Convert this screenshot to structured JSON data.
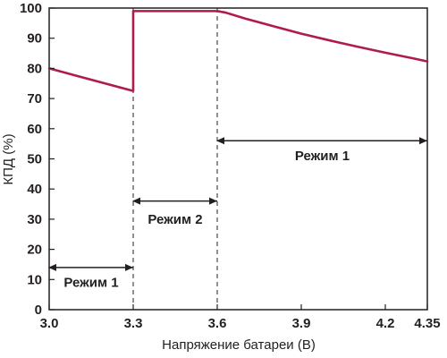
{
  "chart_data": {
    "type": "line",
    "xlabel": "Напряжение батареи (В)",
    "ylabel": "КПД (%)",
    "xlim": [
      3.0,
      4.35
    ],
    "ylim": [
      0,
      100
    ],
    "x_ticks": [
      {
        "value": 3.0,
        "label": "3.0"
      },
      {
        "value": 3.3,
        "label": "3.3"
      },
      {
        "value": 3.6,
        "label": "3.6"
      },
      {
        "value": 3.9,
        "label": "3.9"
      },
      {
        "value": 4.2,
        "label": "4.2"
      },
      {
        "value": 4.35,
        "label": "4.35"
      }
    ],
    "y_ticks": [
      {
        "value": 0,
        "label": "0"
      },
      {
        "value": 10,
        "label": "10"
      },
      {
        "value": 20,
        "label": "20"
      },
      {
        "value": 30,
        "label": "30"
      },
      {
        "value": 40,
        "label": "40"
      },
      {
        "value": 50,
        "label": "50"
      },
      {
        "value": 60,
        "label": "60"
      },
      {
        "value": 70,
        "label": "70"
      },
      {
        "value": 80,
        "label": "80"
      },
      {
        "value": 90,
        "label": "90"
      },
      {
        "value": 100,
        "label": "100"
      }
    ],
    "series": [
      {
        "color": "#b01c4a",
        "points": [
          [
            3.0,
            80
          ],
          [
            3.1,
            77.5
          ],
          [
            3.2,
            75
          ],
          [
            3.3,
            72.5
          ],
          [
            3.3,
            99
          ],
          [
            3.4,
            99
          ],
          [
            3.5,
            99
          ],
          [
            3.6,
            99
          ],
          [
            3.63,
            98.5
          ],
          [
            3.7,
            96.5
          ],
          [
            3.8,
            94
          ],
          [
            3.9,
            91.5
          ],
          [
            4.0,
            89.3
          ],
          [
            4.1,
            87.2
          ],
          [
            4.2,
            85.2
          ],
          [
            4.3,
            83.3
          ],
          [
            4.35,
            82.3
          ]
        ]
      }
    ],
    "vertical_markers": [
      3.3,
      3.6
    ],
    "regions": [
      {
        "label": "Режим 1",
        "x_start": 3.0,
        "x_end": 3.3,
        "arrow_y": 14,
        "label_y": 9
      },
      {
        "label": "Режим 2",
        "x_start": 3.3,
        "x_end": 3.6,
        "arrow_y": 36,
        "label_y": 30
      },
      {
        "label": "Режим 1",
        "x_start": 3.6,
        "x_end": 4.35,
        "arrow_y": 56,
        "label_y": 51
      }
    ],
    "grid": false,
    "colors": {
      "axis": "#231f20",
      "line": "#b01c4a",
      "marker": "#231f20"
    }
  }
}
